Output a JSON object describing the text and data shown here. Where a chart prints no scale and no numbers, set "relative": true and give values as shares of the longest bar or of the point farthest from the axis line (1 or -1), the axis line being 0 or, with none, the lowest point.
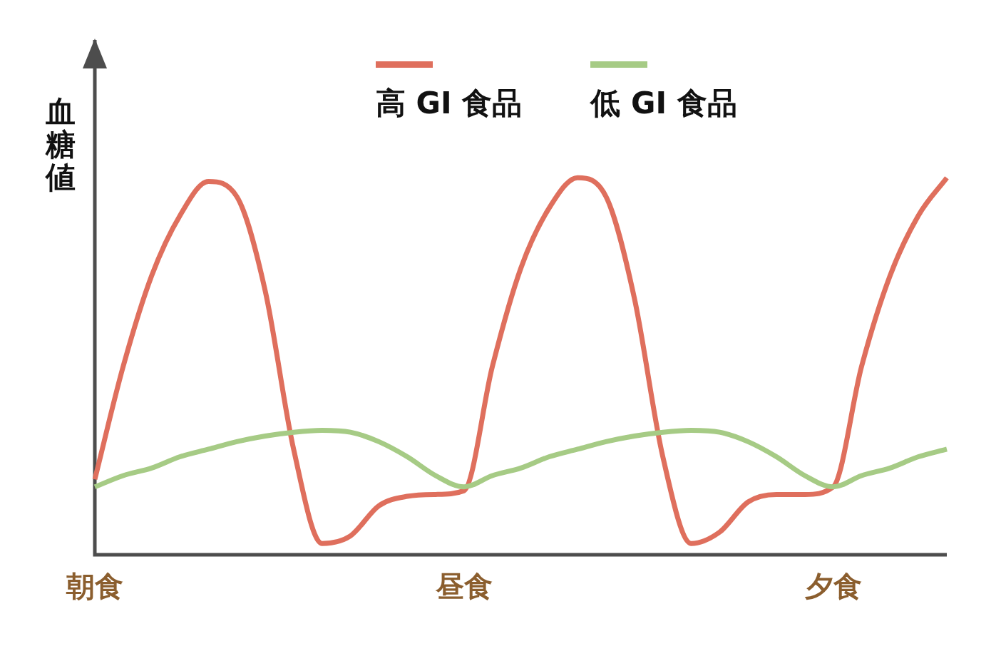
{
  "chart_data": {
    "type": "line",
    "relative": true,
    "ylabel": "血糖値",
    "legend": "top",
    "marker": "none",
    "grid": false,
    "categories": [
      "朝食",
      null,
      null,
      null,
      null,
      null,
      null,
      null,
      null,
      null,
      null,
      null,
      null,
      "昼食",
      null,
      null,
      null,
      null,
      null,
      null,
      null,
      null,
      null,
      null,
      null,
      null,
      "夕食",
      null,
      null,
      null,
      null
    ],
    "series": [
      {
        "name": "高 GI 食品",
        "color": "#df6f5d",
        "values": [
          0.2,
          0.5,
          0.74,
          0.9,
          0.99,
          0.95,
          0.7,
          0.28,
          0.03,
          0.05,
          0.13,
          0.155,
          0.16,
          0.17,
          0.5,
          0.76,
          0.92,
          1,
          0.95,
          0.68,
          0.26,
          0.03,
          0.06,
          0.14,
          0.16,
          0.16,
          0.18,
          0.5,
          0.74,
          0.9,
          1
        ]
      },
      {
        "name": "低 GI 食品",
        "color": "#a6cb85",
        "values": [
          0.18,
          0.21,
          0.23,
          0.26,
          0.28,
          0.3,
          0.315,
          0.325,
          0.33,
          0.325,
          0.3,
          0.26,
          0.21,
          0.18,
          0.21,
          0.23,
          0.26,
          0.28,
          0.3,
          0.315,
          0.325,
          0.33,
          0.325,
          0.3,
          0.26,
          0.21,
          0.18,
          0.21,
          0.23,
          0.26,
          0.28
        ]
      }
    ]
  }
}
